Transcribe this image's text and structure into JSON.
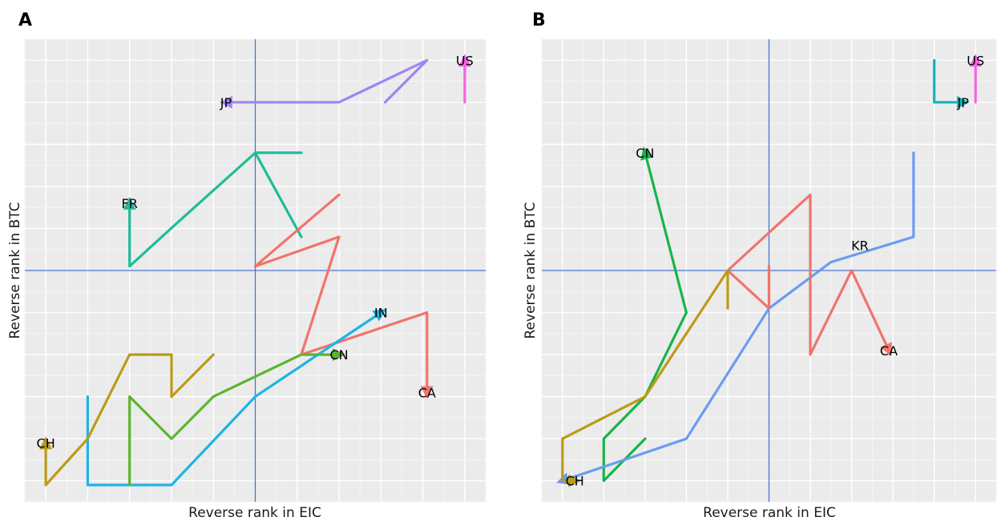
{
  "colors": {
    "panel_bg": "#ebebeb",
    "ref_line": "#4472c4"
  },
  "chart_data": [
    {
      "type": "line",
      "panel_label": "A",
      "xlabel": "Reverse rank in EIC",
      "ylabel": "Reverse rank in BTC",
      "xlim": [
        0,
        11
      ],
      "ylim": [
        0,
        11
      ],
      "grid": true,
      "ref_x": 5.5,
      "ref_y": 5.5,
      "series": [
        {
          "name": "US",
          "color": "#f564e3",
          "points": [
            [
              10.5,
              9.5
            ],
            [
              10.5,
              10.5
            ]
          ],
          "label_at": [
            10.5,
            10.5
          ]
        },
        {
          "name": "JP",
          "color": "#9f84f6",
          "points": [
            [
              8.6,
              9.5
            ],
            [
              9.6,
              10.5
            ],
            [
              7.5,
              9.5
            ],
            [
              4.8,
              9.5
            ]
          ],
          "label_at": [
            4.8,
            9.5
          ]
        },
        {
          "name": "FR",
          "color": "#1ebc9a",
          "points": [
            [
              6.6,
              8.3
            ],
            [
              5.5,
              8.3
            ],
            [
              6.6,
              6.3
            ],
            [
              5.5,
              8.3
            ],
            [
              3.6,
              6.6
            ],
            [
              2.5,
              5.6
            ],
            [
              2.5,
              7.1
            ]
          ],
          "label_at": [
            2.5,
            7.1
          ]
        },
        {
          "name": "CA",
          "color": "#f2736c",
          "points": [
            [
              7.5,
              7.3
            ],
            [
              5.5,
              5.6
            ],
            [
              7.5,
              6.3
            ],
            [
              6.6,
              3.5
            ],
            [
              9.6,
              4.5
            ],
            [
              9.6,
              2.6
            ]
          ],
          "label_at": [
            9.6,
            2.6
          ]
        },
        {
          "name": "IN",
          "color": "#1db4e6",
          "points": [
            [
              1.5,
              2.5
            ],
            [
              1.5,
              0.4
            ],
            [
              3.5,
              0.4
            ],
            [
              5.5,
              2.5
            ],
            [
              8.5,
              4.5
            ]
          ],
          "label_at": [
            8.5,
            4.5
          ]
        },
        {
          "name": "CN",
          "color": "#5cb530",
          "points": [
            [
              2.5,
              0.4
            ],
            [
              2.5,
              2.5
            ],
            [
              3.5,
              1.5
            ],
            [
              4.5,
              2.5
            ],
            [
              6.6,
              3.5
            ],
            [
              7.5,
              3.5
            ]
          ],
          "label_at": [
            7.5,
            3.5
          ]
        },
        {
          "name": "CH",
          "color": "#bb9b19",
          "points": [
            [
              4.5,
              3.5
            ],
            [
              3.5,
              2.5
            ],
            [
              3.5,
              3.5
            ],
            [
              2.5,
              3.5
            ],
            [
              1.5,
              1.5
            ],
            [
              0.5,
              0.4
            ],
            [
              0.5,
              1.4
            ]
          ],
          "label_at": [
            0.5,
            1.4
          ]
        }
      ]
    },
    {
      "type": "line",
      "panel_label": "B",
      "xlabel": "Reverse rank in EIC",
      "ylabel": "Reverse rank in BTC",
      "xlim": [
        0,
        11
      ],
      "ylim": [
        0,
        11
      ],
      "grid": true,
      "ref_x": 5.5,
      "ref_y": 5.5,
      "series": [
        {
          "name": "US",
          "color": "#f564e3",
          "points": [
            [
              10.5,
              9.5
            ],
            [
              10.5,
              10.5
            ]
          ],
          "label_at": [
            10.5,
            10.5
          ]
        },
        {
          "name": "JP",
          "color": "#12b5b5",
          "points": [
            [
              9.5,
              10.5
            ],
            [
              9.5,
              9.5
            ],
            [
              10.2,
              9.5
            ]
          ],
          "label_at": [
            10.2,
            9.5
          ]
        },
        {
          "name": "CN",
          "color": "#19b448",
          "points": [
            [
              2.5,
              1.5
            ],
            [
              1.5,
              0.5
            ],
            [
              1.5,
              1.5
            ],
            [
              2.5,
              2.5
            ],
            [
              3.5,
              4.5
            ],
            [
              2.5,
              8.3
            ]
          ],
          "label_at": [
            2.5,
            8.3
          ]
        },
        {
          "name": "KR",
          "color": "#6b9bf2",
          "points": [
            [
              9.0,
              8.3
            ],
            [
              9.0,
              6.3
            ],
            [
              7.0,
              5.7
            ],
            [
              5.5,
              4.6
            ],
            [
              3.5,
              1.5
            ],
            [
              0.5,
              0.5
            ]
          ],
          "label_at": [
            7.7,
            6.1
          ]
        },
        {
          "name": "CA",
          "color": "#f2736c",
          "points": [
            [
              5.5,
              5.6
            ],
            [
              5.5,
              4.6
            ],
            [
              4.5,
              5.5
            ],
            [
              6.5,
              7.3
            ],
            [
              6.5,
              3.5
            ],
            [
              7.5,
              5.5
            ],
            [
              8.4,
              3.6
            ]
          ],
          "label_at": [
            8.4,
            3.6
          ]
        },
        {
          "name": "CH",
          "color": "#bb9b19",
          "points": [
            [
              4.5,
              4.6
            ],
            [
              4.5,
              5.5
            ],
            [
              2.5,
              2.5
            ],
            [
              0.5,
              1.5
            ],
            [
              0.5,
              0.5
            ],
            [
              0.8,
              0.5
            ]
          ],
          "label_at": [
            0.8,
            0.5
          ]
        }
      ]
    }
  ]
}
